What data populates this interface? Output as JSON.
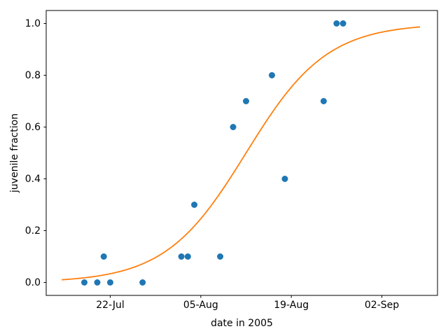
{
  "chart_data": {
    "type": "scatter",
    "title": "",
    "xlabel": "date in 2005",
    "ylabel": "juvenile fraction",
    "x_axis": {
      "tick_labels": [
        "22-Jul",
        "05-Aug",
        "19-Aug",
        "02-Sep"
      ],
      "tick_days": [
        0,
        14,
        28,
        42
      ],
      "reference_day0_date": "22-Jul-2005",
      "xlim_days": [
        -9.9,
        50.6
      ]
    },
    "y_axis": {
      "tick_labels": [
        "0.0",
        "0.2",
        "0.4",
        "0.6",
        "0.8",
        "1.0"
      ],
      "tick_values": [
        0.0,
        0.2,
        0.4,
        0.6,
        0.8,
        1.0
      ],
      "ylim": [
        -0.05,
        1.05
      ]
    },
    "points": [
      {
        "date": "18-Jul",
        "day": -4,
        "value": 0.0
      },
      {
        "date": "20-Jul",
        "day": -2,
        "value": 0.0
      },
      {
        "date": "21-Jul",
        "day": -1,
        "value": 0.1
      },
      {
        "date": "22-Jul",
        "day": 0,
        "value": 0.0
      },
      {
        "date": "27-Jul",
        "day": 5,
        "value": 0.0
      },
      {
        "date": "02-Aug",
        "day": 11,
        "value": 0.1
      },
      {
        "date": "03-Aug",
        "day": 12,
        "value": 0.1
      },
      {
        "date": "04-Aug",
        "day": 13,
        "value": 0.3
      },
      {
        "date": "08-Aug",
        "day": 17,
        "value": 0.1
      },
      {
        "date": "10-Aug",
        "day": 19,
        "value": 0.6
      },
      {
        "date": "12-Aug",
        "day": 21,
        "value": 0.7
      },
      {
        "date": "16-Aug",
        "day": 25,
        "value": 0.8
      },
      {
        "date": "18-Aug",
        "day": 27,
        "value": 0.4
      },
      {
        "date": "24-Aug",
        "day": 33,
        "value": 0.7
      },
      {
        "date": "26-Aug",
        "day": 35,
        "value": 1.0
      },
      {
        "date": "27-Aug",
        "day": 36,
        "value": 1.0
      }
    ],
    "fit_curve": {
      "type": "logistic",
      "formula": "y = 1 / (1 + exp(-k * (day - midpoint_day)))",
      "midpoint_day": 21,
      "midpoint_date": "12-Aug",
      "growth_rate_k": 0.16,
      "day_start": -7.5,
      "day_end": 47.9
    },
    "colors": {
      "points": "#1f77b4",
      "curve": "#ff7f0e",
      "axes": "#000000",
      "background": "#ffffff"
    },
    "legend": "none",
    "grid": "off"
  }
}
